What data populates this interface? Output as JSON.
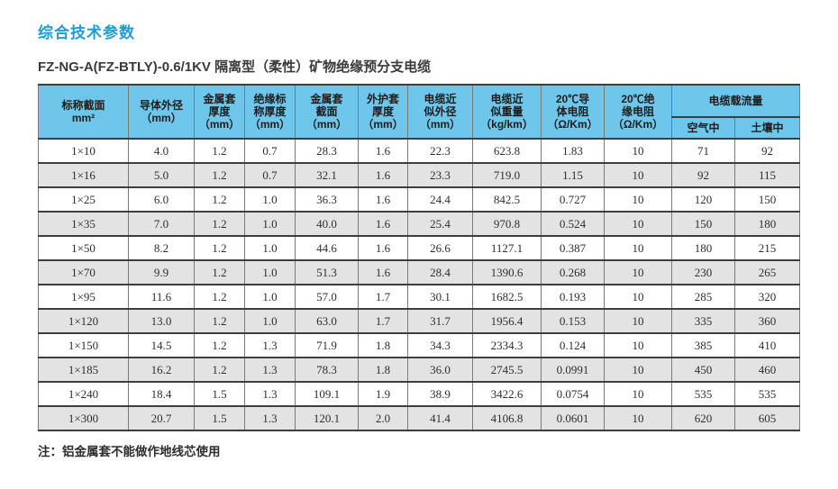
{
  "page": {
    "title": "综合技术参数",
    "subtitle": "FZ-NG-A(FZ-BTLY)-0.6/1KV 隔离型（柔性）矿物绝缘预分支电缆",
    "note": "注：铝金属套不能做作地线芯使用"
  },
  "colors": {
    "title_blue": "#1E9CD8",
    "header_bg": "#6EC6EA",
    "row_alt_bg": "#E3E3E3",
    "rule_dark": "#3e3e3e",
    "rule_light": "#7a7a7a"
  },
  "chart_data": {
    "type": "table",
    "columns": [
      {
        "lines": [
          "标称截面",
          "mm²"
        ]
      },
      {
        "lines": [
          "导体外径",
          "（mm）"
        ]
      },
      {
        "lines": [
          "金属套",
          "厚度",
          "（mm）"
        ]
      },
      {
        "lines": [
          "绝缘标",
          "称厚度",
          "（mm）"
        ]
      },
      {
        "lines": [
          "金属套",
          "截面",
          "（mm）"
        ]
      },
      {
        "lines": [
          "外护套",
          "厚度",
          "（mm）"
        ]
      },
      {
        "lines": [
          "电缆近",
          "似外径",
          "（mm）"
        ]
      },
      {
        "lines": [
          "电缆近",
          "似重量",
          "（kg/km）"
        ]
      },
      {
        "lines": [
          "20℃导",
          "体电阻",
          "（Ω/Km）"
        ]
      },
      {
        "lines": [
          "20℃绝",
          "缘电阻",
          "（Ω/Km）"
        ]
      }
    ],
    "ampacity_group": {
      "label": "电缆载流量",
      "sub_columns": [
        "空气中",
        "土壤中"
      ]
    },
    "rows": [
      [
        "1×10",
        "4.0",
        "1.2",
        "0.7",
        "28.3",
        "1.6",
        "22.3",
        "623.8",
        "1.83",
        "10",
        "71",
        "92"
      ],
      [
        "1×16",
        "5.0",
        "1.2",
        "0.7",
        "32.1",
        "1.6",
        "23.3",
        "719.0",
        "1.15",
        "10",
        "92",
        "115"
      ],
      [
        "1×25",
        "6.0",
        "1.2",
        "1.0",
        "36.3",
        "1.6",
        "24.4",
        "842.5",
        "0.727",
        "10",
        "120",
        "150"
      ],
      [
        "1×35",
        "7.0",
        "1.2",
        "1.0",
        "40.0",
        "1.6",
        "25.4",
        "970.8",
        "0.524",
        "10",
        "150",
        "180"
      ],
      [
        "1×50",
        "8.2",
        "1.2",
        "1.0",
        "44.6",
        "1.6",
        "26.6",
        "1127.1",
        "0.387",
        "10",
        "180",
        "215"
      ],
      [
        "1×70",
        "9.9",
        "1.2",
        "1.0",
        "51.3",
        "1.6",
        "28.4",
        "1390.6",
        "0.268",
        "10",
        "230",
        "265"
      ],
      [
        "1×95",
        "11.6",
        "1.2",
        "1.0",
        "57.0",
        "1.7",
        "30.1",
        "1682.5",
        "0.193",
        "10",
        "285",
        "320"
      ],
      [
        "1×120",
        "13.0",
        "1.2",
        "1.0",
        "63.0",
        "1.7",
        "31.7",
        "1956.4",
        "0.153",
        "10",
        "335",
        "360"
      ],
      [
        "1×150",
        "14.5",
        "1.2",
        "1.3",
        "71.9",
        "1.8",
        "34.3",
        "2334.3",
        "0.124",
        "10",
        "385",
        "410"
      ],
      [
        "1×185",
        "16.2",
        "1.2",
        "1.3",
        "78.3",
        "1.8",
        "36.0",
        "2745.5",
        "0.0991",
        "10",
        "450",
        "460"
      ],
      [
        "1×240",
        "18.4",
        "1.5",
        "1.3",
        "109.1",
        "1.9",
        "38.9",
        "3422.6",
        "0.0754",
        "10",
        "535",
        "535"
      ],
      [
        "1×300",
        "20.7",
        "1.5",
        "1.3",
        "120.1",
        "2.0",
        "41.4",
        "4106.8",
        "0.0601",
        "10",
        "620",
        "605"
      ]
    ]
  }
}
